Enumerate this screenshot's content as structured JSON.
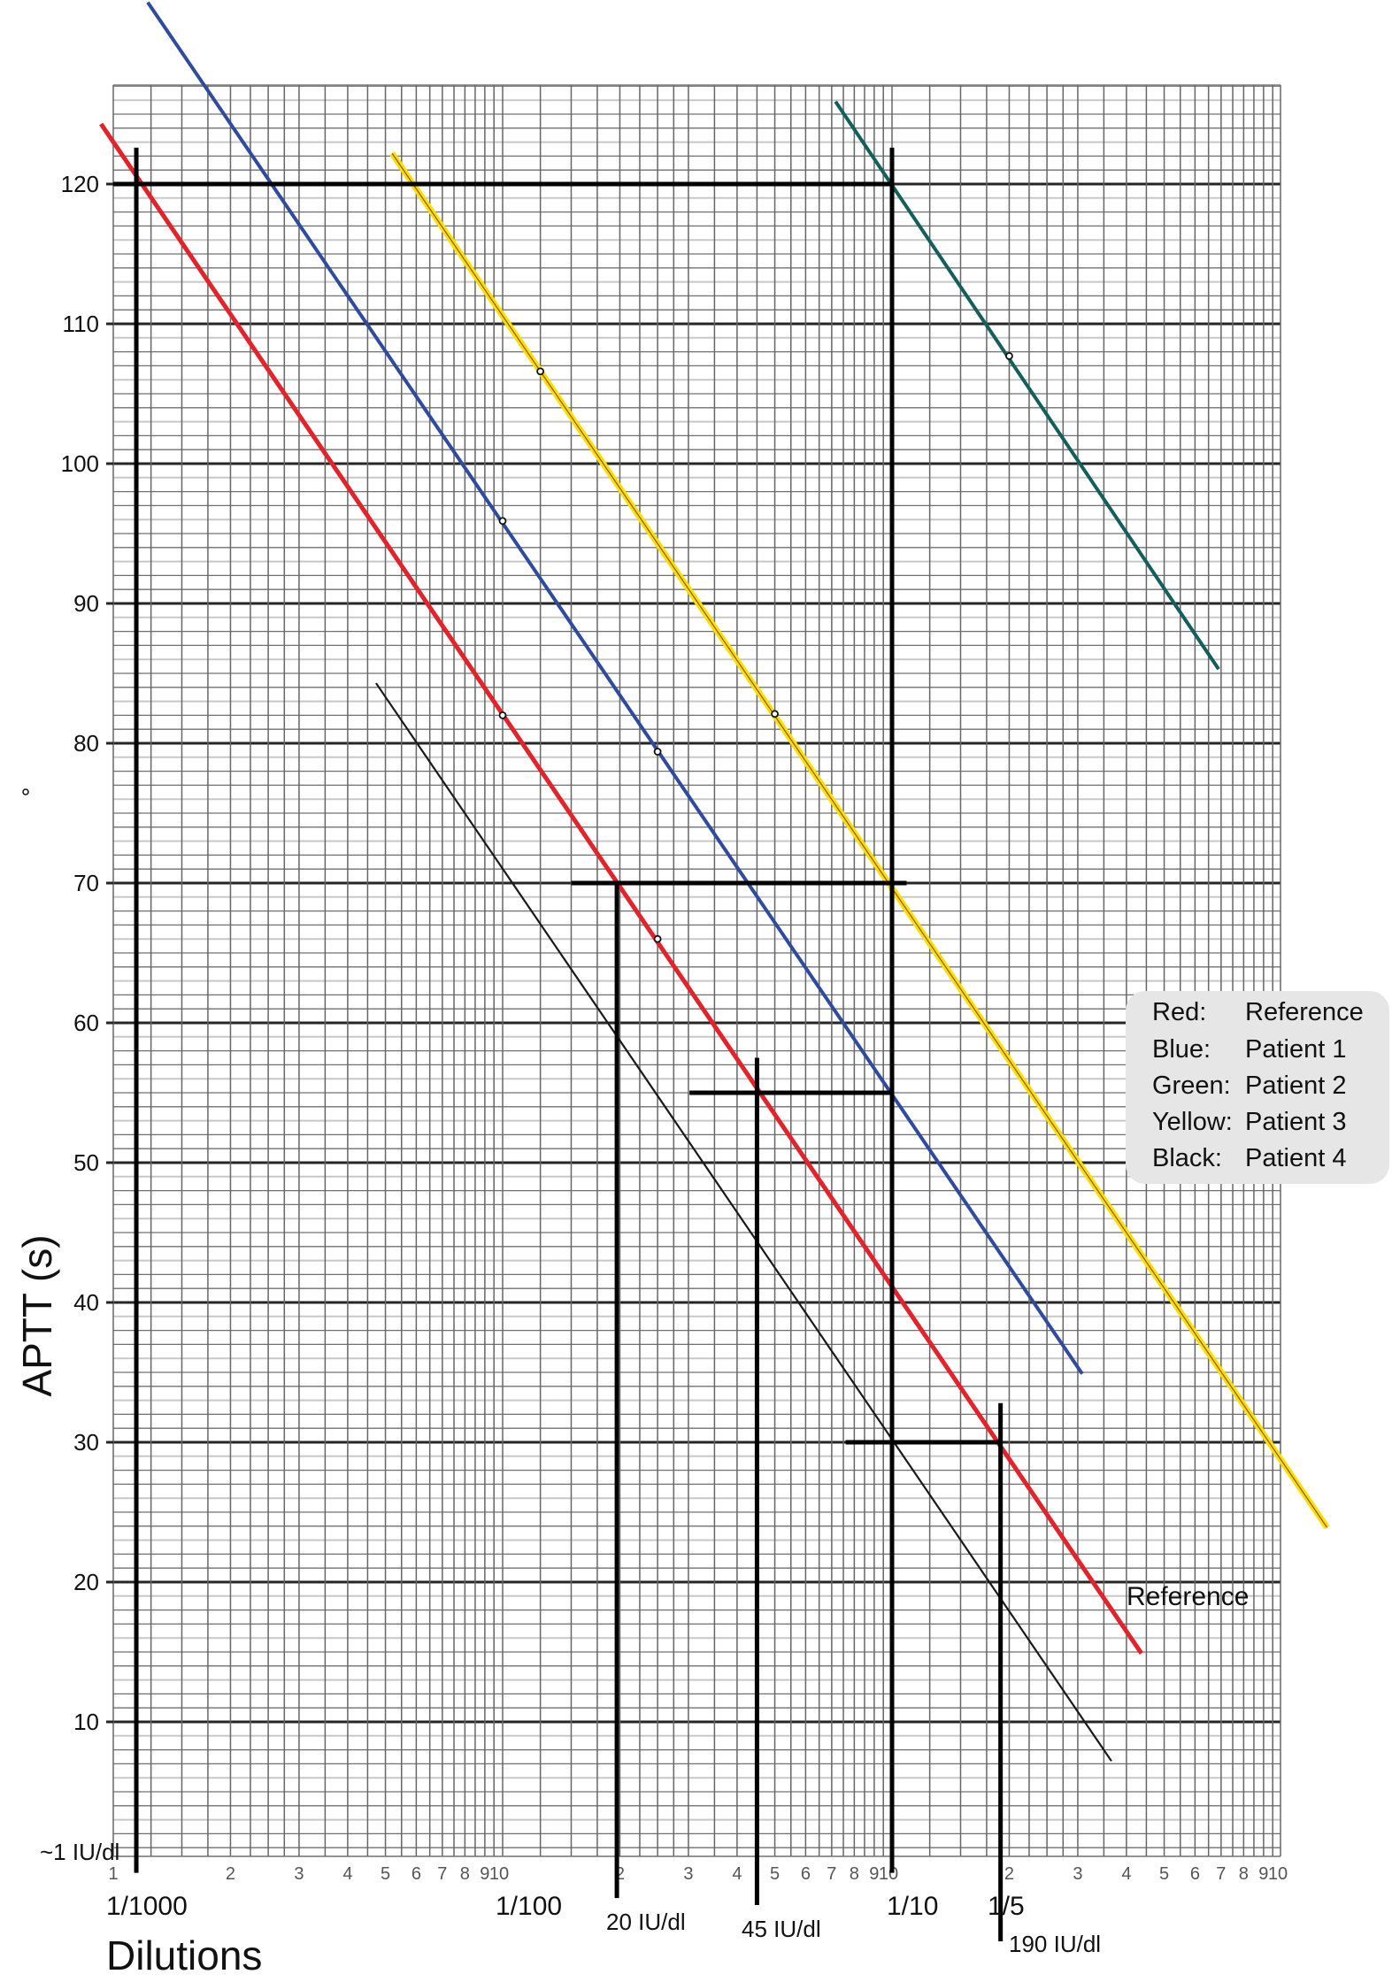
{
  "chart_data": {
    "type": "line",
    "x_scale": "log",
    "xlim": [
      0.001,
      1
    ],
    "ylim": [
      0,
      127
    ],
    "ylabel": "APTT (s)",
    "xlabel": "Dilutions",
    "grid": true,
    "y_ticks": [
      10,
      20,
      30,
      40,
      50,
      60,
      70,
      80,
      90,
      100,
      110,
      120
    ],
    "x_tick_labels": [
      {
        "value": 0.001,
        "label": "1"
      },
      {
        "value": 0.002,
        "label": "2"
      },
      {
        "value": 0.003,
        "label": "3"
      },
      {
        "value": 0.004,
        "label": "4"
      },
      {
        "value": 0.005,
        "label": "5"
      },
      {
        "value": 0.006,
        "label": "6"
      },
      {
        "value": 0.007,
        "label": "7"
      },
      {
        "value": 0.008,
        "label": "8"
      },
      {
        "value": 0.009,
        "label": "9"
      },
      {
        "value": 0.01,
        "label": "10"
      },
      {
        "value": 0.02,
        "label": "2"
      },
      {
        "value": 0.03,
        "label": "3"
      },
      {
        "value": 0.04,
        "label": "4"
      },
      {
        "value": 0.05,
        "label": "5"
      },
      {
        "value": 0.06,
        "label": "6"
      },
      {
        "value": 0.07,
        "label": "7"
      },
      {
        "value": 0.08,
        "label": "8"
      },
      {
        "value": 0.09,
        "label": "9"
      },
      {
        "value": 0.1,
        "label": "10"
      },
      {
        "value": 0.2,
        "label": "2"
      },
      {
        "value": 0.3,
        "label": "3"
      },
      {
        "value": 0.4,
        "label": "4"
      },
      {
        "value": 0.5,
        "label": "5"
      },
      {
        "value": 0.6,
        "label": "6"
      },
      {
        "value": 0.7,
        "label": "7"
      },
      {
        "value": 0.8,
        "label": "8"
      },
      {
        "value": 0.9,
        "label": "9"
      },
      {
        "value": 1,
        "label": "10"
      }
    ],
    "dilution_labels": {
      "d1000": "1/1000",
      "d100": "1/100",
      "d10": "1/10",
      "d5": "1/5"
    },
    "annotations": {
      "iu1": "~1 IU/dl",
      "iu20": "20 IU/dl",
      "iu45": "45 IU/dl",
      "iu190": "190 IU/dl",
      "reference": "Reference"
    },
    "series": [
      {
        "name": "Patient 3",
        "color": "#f2e205",
        "line": [
          [
            0.0052,
            122.2
          ],
          [
            1.31,
            23.9
          ]
        ],
        "points": [
          [
            0.0125,
            106.6
          ],
          [
            0.05,
            82.1
          ]
        ]
      },
      {
        "name": "Patient 2",
        "color": "#125f5c",
        "line": [
          [
            0.0716,
            125.9
          ],
          [
            0.69,
            85.3
          ]
        ],
        "points": [
          [
            0.2,
            107.7
          ]
        ]
      },
      {
        "name": "Patient 1",
        "color": "#2e4b9e",
        "line": [
          [
            0.001226,
            133.0
          ],
          [
            0.308,
            34.9
          ]
        ],
        "points": [
          [
            0.01,
            95.9
          ],
          [
            0.025,
            79.4
          ]
        ]
      },
      {
        "name": "Reference",
        "color": "#e3232a",
        "line": [
          [
            0.00093,
            124.3
          ],
          [
            0.437,
            14.9
          ]
        ],
        "points": [
          [
            0.01,
            82.0
          ],
          [
            0.025,
            66.0
          ]
        ]
      },
      {
        "name": "Patient 4",
        "color": "#1a1a1a",
        "line": [
          [
            0.00473,
            84.3
          ],
          [
            0.366,
            7.2
          ]
        ],
        "points": []
      }
    ],
    "guides": [
      [
        [
          0.001,
          120
        ],
        [
          0.1,
          120
        ]
      ],
      [
        [
          0.001146,
          122.6
        ],
        [
          0.001146,
          -0.8
        ]
      ],
      [
        [
          0.1,
          122.6
        ],
        [
          0.1,
          -0.8
        ]
      ],
      [
        [
          0.015,
          70
        ],
        [
          0.109,
          70
        ]
      ],
      [
        [
          0.01965,
          70
        ],
        [
          0.01965,
          -2.6
        ]
      ],
      [
        [
          0.0302,
          55
        ],
        [
          0.1,
          55
        ]
      ],
      [
        [
          0.045,
          57.5
        ],
        [
          0.045,
          -3.1
        ]
      ],
      [
        [
          0.076,
          30
        ],
        [
          0.19,
          30
        ]
      ],
      [
        [
          0.19,
          32.8
        ],
        [
          0.19,
          -5.7
        ]
      ]
    ],
    "legend": {
      "position": "right",
      "rows": [
        {
          "key": "Red:",
          "value": "Reference"
        },
        {
          "key": "Blue:",
          "value": "Patient 1"
        },
        {
          "key": "Green:",
          "value": "Patient 2"
        },
        {
          "key": "Yellow:",
          "value": "Patient 3"
        },
        {
          "key": "Black:",
          "value": "Patient 4"
        }
      ]
    }
  }
}
